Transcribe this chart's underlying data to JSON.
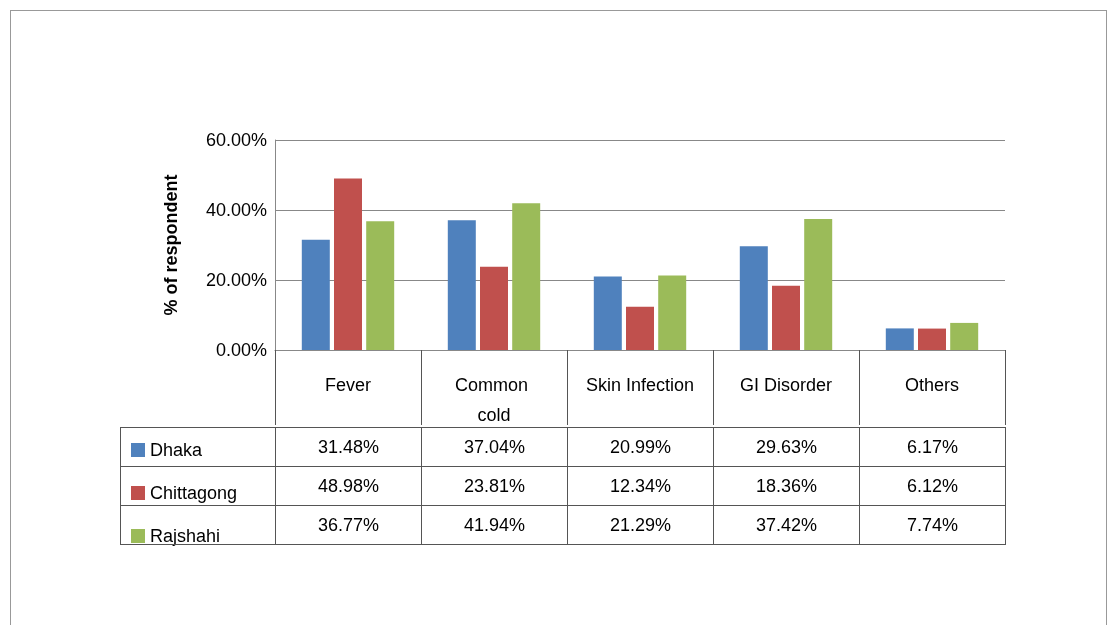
{
  "chart_data": {
    "type": "bar",
    "ylabel": "% of respondent",
    "categories": [
      "Fever",
      "Common cold",
      "Skin Infection",
      "GI Disorder",
      "Others"
    ],
    "series": [
      {
        "name": "Dhaka",
        "color": "#4f81bd",
        "values": [
          31.48,
          37.04,
          20.99,
          29.63,
          6.17
        ],
        "value_labels": [
          "31.48%",
          "37.04%",
          "20.99%",
          "29.63%",
          "6.17%"
        ]
      },
      {
        "name": "Chittagong",
        "color": "#c0504d",
        "values": [
          48.98,
          23.81,
          12.34,
          18.36,
          6.12
        ],
        "value_labels": [
          "48.98%",
          "23.81%",
          "12.34%",
          "18.36%",
          "6.12%"
        ]
      },
      {
        "name": "Rajshahi",
        "color": "#9bbb59",
        "values": [
          36.77,
          41.94,
          21.29,
          37.42,
          7.74
        ],
        "value_labels": [
          "36.77%",
          "41.94%",
          "21.29%",
          "37.42%",
          "7.74%"
        ]
      }
    ],
    "ylim": [
      0,
      60
    ],
    "yticks": [
      {
        "value": 0,
        "label": "0.00%"
      },
      {
        "value": 20,
        "label": "20.00%"
      },
      {
        "value": 40,
        "label": "40.00%"
      },
      {
        "value": 60,
        "label": "60.00%"
      }
    ],
    "grid": "y",
    "legend": "bottom"
  }
}
